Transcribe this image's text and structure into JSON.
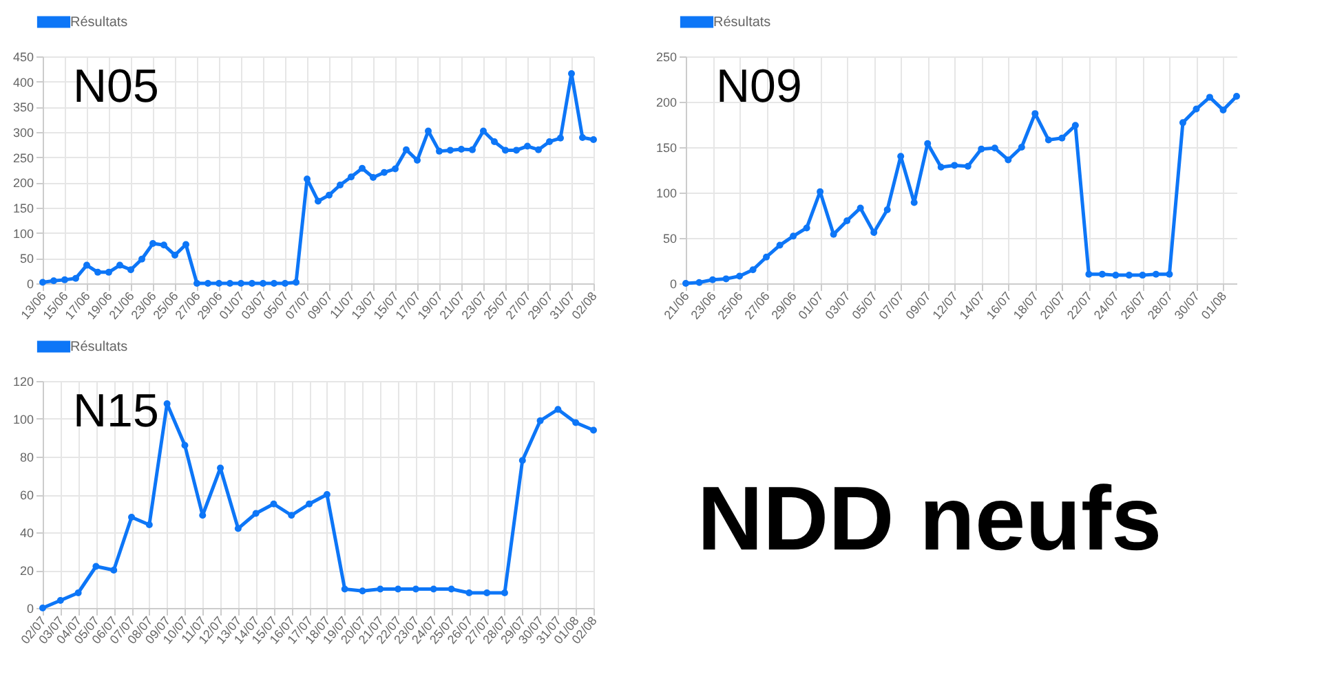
{
  "chart_data": [
    {
      "type": "line",
      "title": "N05",
      "categories": [
        "13/06",
        null,
        "15/06",
        null,
        "17/06",
        null,
        "19/06",
        null,
        "21/06",
        null,
        "23/06",
        null,
        "25/06",
        null,
        "27/06",
        null,
        "29/06",
        null,
        "01/07",
        null,
        "03/07",
        null,
        "05/07",
        null,
        "07/07",
        null,
        "09/07",
        null,
        "11/07",
        null,
        "13/07",
        null,
        "15/07",
        null,
        "17/07",
        null,
        "19/07",
        null,
        "21/07",
        null,
        "23/07",
        null,
        "25/07",
        null,
        "27/07",
        null,
        "29/07",
        null,
        "31/07",
        null,
        "02/08"
      ],
      "series": [
        {
          "name": "Résultats",
          "color": "#0d76f7",
          "values": [
            2,
            5,
            7,
            10,
            36,
            22,
            22,
            36,
            27,
            48,
            79,
            76,
            56,
            77,
            0,
            0,
            0,
            0,
            0,
            0,
            0,
            0,
            0,
            2,
            207,
            163,
            175,
            195,
            211,
            228,
            210,
            220,
            227,
            265,
            244,
            302,
            262,
            264,
            266,
            265,
            302,
            281,
            264,
            264,
            272,
            265,
            281,
            288,
            416,
            289,
            285
          ]
        }
      ],
      "ylim": [
        0,
        450
      ],
      "yticks": [
        0,
        50,
        100,
        150,
        200,
        250,
        300,
        350,
        400,
        450
      ],
      "grid": true,
      "legend": "top",
      "marker": "circle"
    },
    {
      "type": "line",
      "title": "N09",
      "categories": [
        "21/06",
        null,
        "23/06",
        null,
        "25/06",
        null,
        "27/06",
        null,
        "29/06",
        null,
        "01/07",
        null,
        "03/07",
        null,
        "05/07",
        null,
        "07/07",
        null,
        "09/07",
        null,
        "12/07",
        null,
        "14/07",
        null,
        "16/07",
        null,
        "18/07",
        null,
        "20/07",
        null,
        "22/07",
        null,
        "24/07",
        null,
        "26/07",
        null,
        "28/07",
        null,
        "30/07",
        null,
        "01/08",
        null
      ],
      "series": [
        {
          "name": "Résultats",
          "color": "#0d76f7",
          "values": [
            0,
            1,
            4,
            5,
            8,
            15,
            29,
            42,
            52,
            61,
            101,
            54,
            69,
            83,
            56,
            81,
            140,
            89,
            154,
            128,
            130,
            129,
            148,
            149,
            136,
            150,
            187,
            158,
            160,
            174,
            10,
            10,
            9,
            9,
            9,
            10,
            10,
            177,
            192,
            205,
            191,
            206
          ]
        }
      ],
      "ylim": [
        0,
        250
      ],
      "yticks": [
        0,
        50,
        100,
        150,
        200,
        250
      ],
      "grid": true,
      "legend": "top",
      "marker": "circle"
    },
    {
      "type": "line",
      "title": "N15",
      "categories": [
        "02/07",
        "03/07",
        "04/07",
        "05/07",
        "06/07",
        "07/07",
        "08/07",
        "09/07",
        "10/07",
        "11/07",
        "12/07",
        "13/07",
        "14/07",
        "15/07",
        "16/07",
        "17/07",
        "18/07",
        "19/07",
        "20/07",
        "21/07",
        "22/07",
        "23/07",
        "24/07",
        "25/07",
        "26/07",
        "27/07",
        "28/07",
        "29/07",
        "30/07",
        "31/07",
        "01/08",
        "02/08"
      ],
      "series": [
        {
          "name": "Résultats",
          "color": "#0d76f7",
          "values": [
            0,
            4,
            8,
            22,
            20,
            48,
            44,
            108,
            86,
            49,
            74,
            42,
            50,
            55,
            49,
            55,
            60,
            10,
            9,
            10,
            10,
            10,
            10,
            10,
            8,
            8,
            8,
            78,
            99,
            105,
            98,
            94
          ]
        }
      ],
      "ylim": [
        0,
        120
      ],
      "yticks": [
        0,
        20,
        40,
        60,
        80,
        100,
        120
      ],
      "grid": true,
      "legend": "top",
      "marker": "circle"
    },
    {
      "type": "other",
      "title": "NDD neufs"
    }
  ]
}
